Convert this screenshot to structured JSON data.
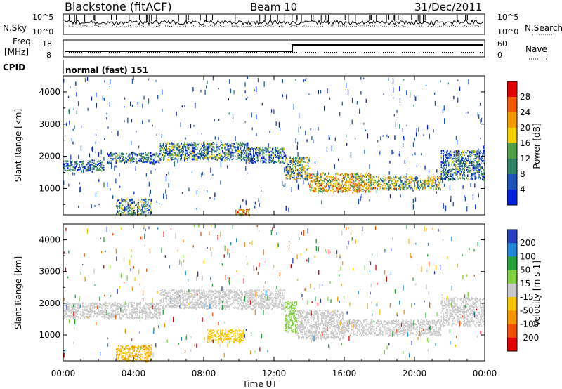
{
  "header": {
    "station": "Blackstone (fitACF)",
    "beam": "Beam 10",
    "date": "31/Dec/2011"
  },
  "params": {
    "nsky_label": "N.Sky",
    "nsky_ticks": [
      "10^5",
      "10^0"
    ],
    "nsearch_label": "N.Search",
    "nsearch_ticks": [
      "10^5",
      "10^0"
    ],
    "freq_label": "Freq.",
    "freq_unit": "[MHz]",
    "freq_ticks": [
      "18",
      "8"
    ],
    "nave_label": "Nave",
    "nave_ticks": [
      "60",
      "0"
    ],
    "cpid_label": "CPID",
    "cpid_text": "normal (fast) 151"
  },
  "colors": {
    "power": [
      "#0022dd",
      "#1d54b8",
      "#2f8466",
      "#4fa04a",
      "#f2d000",
      "#f39c00",
      "#f05a00",
      "#e00000"
    ],
    "velocity": [
      "#2a3fbf",
      "#1f86d8",
      "#23a23a",
      "#80d040",
      "#c8c8c8",
      "#f6c400",
      "#f49400",
      "#f05000",
      "#e00000"
    ]
  },
  "chart_data": [
    {
      "type": "heatmap",
      "quantity": "Power",
      "xlabel": "Time UT",
      "ylabel": "Slant Range [km]",
      "xlim_hours": [
        0,
        24
      ],
      "ylim": [
        180,
        4500
      ],
      "x_ticks": [
        "00:00",
        "04:00",
        "08:00",
        "12:00",
        "16:00",
        "20:00",
        "00:00"
      ],
      "y_ticks": [
        1000,
        2000,
        3000,
        4000
      ],
      "colorbar_label": "Power [dB]",
      "colorbar_ticks": [
        "4",
        "8",
        "12",
        "16",
        "20",
        "24",
        "28"
      ],
      "colorbar_range": [
        0,
        30
      ],
      "bands": [
        {
          "t": [
            0.0,
            2.3
          ],
          "r": [
            1550,
            1900
          ],
          "value": 6
        },
        {
          "t": [
            2.5,
            5.5
          ],
          "r": [
            1800,
            2150
          ],
          "value": 7
        },
        {
          "t": [
            5.5,
            10.5
          ],
          "r": [
            1900,
            2450
          ],
          "value": 9
        },
        {
          "t": [
            10.5,
            12.6
          ],
          "r": [
            1800,
            2300
          ],
          "value": 7
        },
        {
          "t": [
            12.6,
            14.0
          ],
          "r": [
            1300,
            2000
          ],
          "value": 12
        },
        {
          "t": [
            14.0,
            17.5
          ],
          "r": [
            900,
            1500
          ],
          "value": 18
        },
        {
          "t": [
            17.5,
            21.5
          ],
          "r": [
            1000,
            1400
          ],
          "value": 14
        },
        {
          "t": [
            21.5,
            24.0
          ],
          "r": [
            1300,
            2200
          ],
          "value": 8
        },
        {
          "t": [
            3.0,
            5.0
          ],
          "r": [
            200,
            700
          ],
          "value": 10
        },
        {
          "t": [
            9.8,
            10.6
          ],
          "r": [
            200,
            400
          ],
          "value": 20
        }
      ]
    },
    {
      "type": "heatmap",
      "quantity": "Velocity",
      "xlabel": "Time UT",
      "ylabel": "Slant Range [km]",
      "xlim_hours": [
        0,
        24
      ],
      "ylim": [
        180,
        4500
      ],
      "x_ticks": [
        "00:00",
        "04:00",
        "08:00",
        "12:00",
        "16:00",
        "20:00",
        "00:00"
      ],
      "y_ticks": [
        1000,
        2000,
        3000,
        4000
      ],
      "colorbar_label": "Velocity [m s-1]",
      "colorbar_ticks": [
        "200",
        "100",
        "50",
        "15",
        "-15",
        "-50",
        "-100",
        "-200"
      ],
      "colorbar_range": [
        -250,
        250
      ],
      "bands": [
        {
          "t": [
            0.0,
            5.5
          ],
          "r": [
            1550,
            2050
          ],
          "value": 0
        },
        {
          "t": [
            5.5,
            12.6
          ],
          "r": [
            1850,
            2450
          ],
          "value": 0
        },
        {
          "t": [
            12.6,
            13.3
          ],
          "r": [
            1100,
            2100
          ],
          "value": 60
        },
        {
          "t": [
            13.3,
            16.0
          ],
          "r": [
            900,
            1800
          ],
          "value": 0
        },
        {
          "t": [
            16.0,
            21.5
          ],
          "r": [
            1000,
            1500
          ],
          "value": 0
        },
        {
          "t": [
            21.5,
            24.0
          ],
          "r": [
            1300,
            2200
          ],
          "value": 0
        },
        {
          "t": [
            8.2,
            10.3
          ],
          "r": [
            800,
            1200
          ],
          "value": -60
        },
        {
          "t": [
            3.0,
            5.0
          ],
          "r": [
            200,
            700
          ],
          "value": -80
        }
      ]
    }
  ]
}
